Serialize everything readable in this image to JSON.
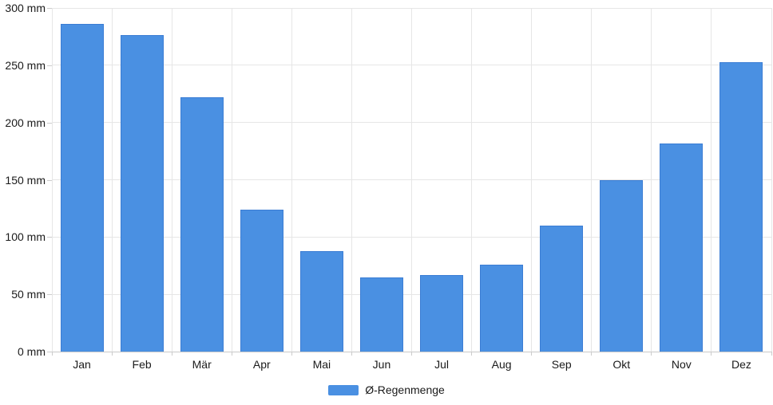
{
  "chart_data": {
    "type": "bar",
    "title": "",
    "categories": [
      "Jan",
      "Feb",
      "Mär",
      "Apr",
      "Mai",
      "Jun",
      "Jul",
      "Aug",
      "Sep",
      "Okt",
      "Nov",
      "Dez"
    ],
    "series": [
      {
        "name": "Ø-Regenmenge",
        "values": [
          286,
          276,
          222,
          124,
          88,
          65,
          67,
          76,
          110,
          150,
          182,
          253
        ]
      }
    ],
    "unit": "mm",
    "ylim": [
      0,
      300
    ],
    "y_tick_step": 50,
    "y_tick_labels": [
      "0 mm",
      "50 mm",
      "100 mm",
      "150 mm",
      "200 mm",
      "250 mm",
      "300 mm"
    ],
    "xlabel": "",
    "ylabel": "",
    "grid": true,
    "legend_position": "bottom",
    "colors": {
      "bar_fill": "#4a90e2",
      "bar_edge": "#3b7dd4",
      "gridline": "#e6e6e6",
      "axis_line": "#c9c9c9",
      "tick": "#cccccc",
      "text": "#1a1a1a",
      "background": "#ffffff"
    }
  }
}
